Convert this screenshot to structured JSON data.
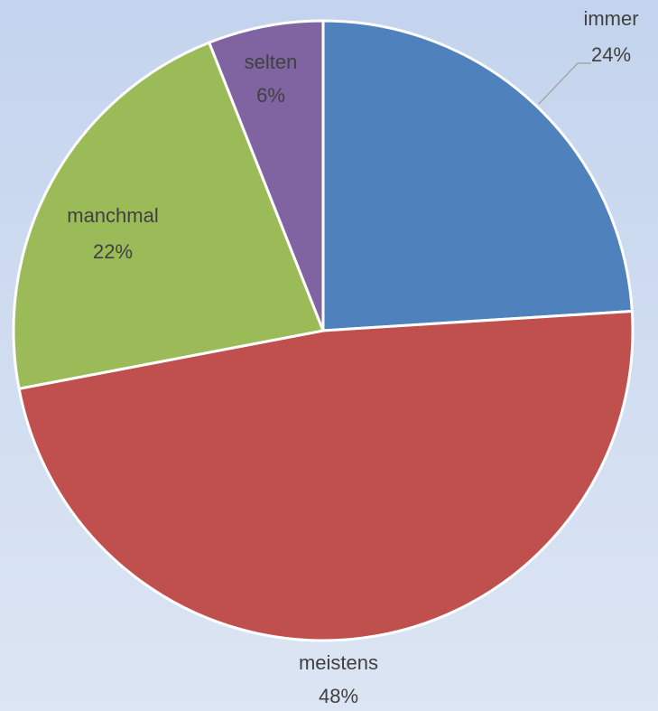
{
  "chart_data": {
    "type": "pie",
    "categories": [
      "immer",
      "meistens",
      "manchmal",
      "selten"
    ],
    "values": [
      24,
      48,
      22,
      6
    ],
    "value_labels": [
      "24%",
      "48%",
      "22%",
      "6%"
    ],
    "colors": [
      "#4f81bd",
      "#c0504d",
      "#9bbb59",
      "#8064a2"
    ]
  }
}
